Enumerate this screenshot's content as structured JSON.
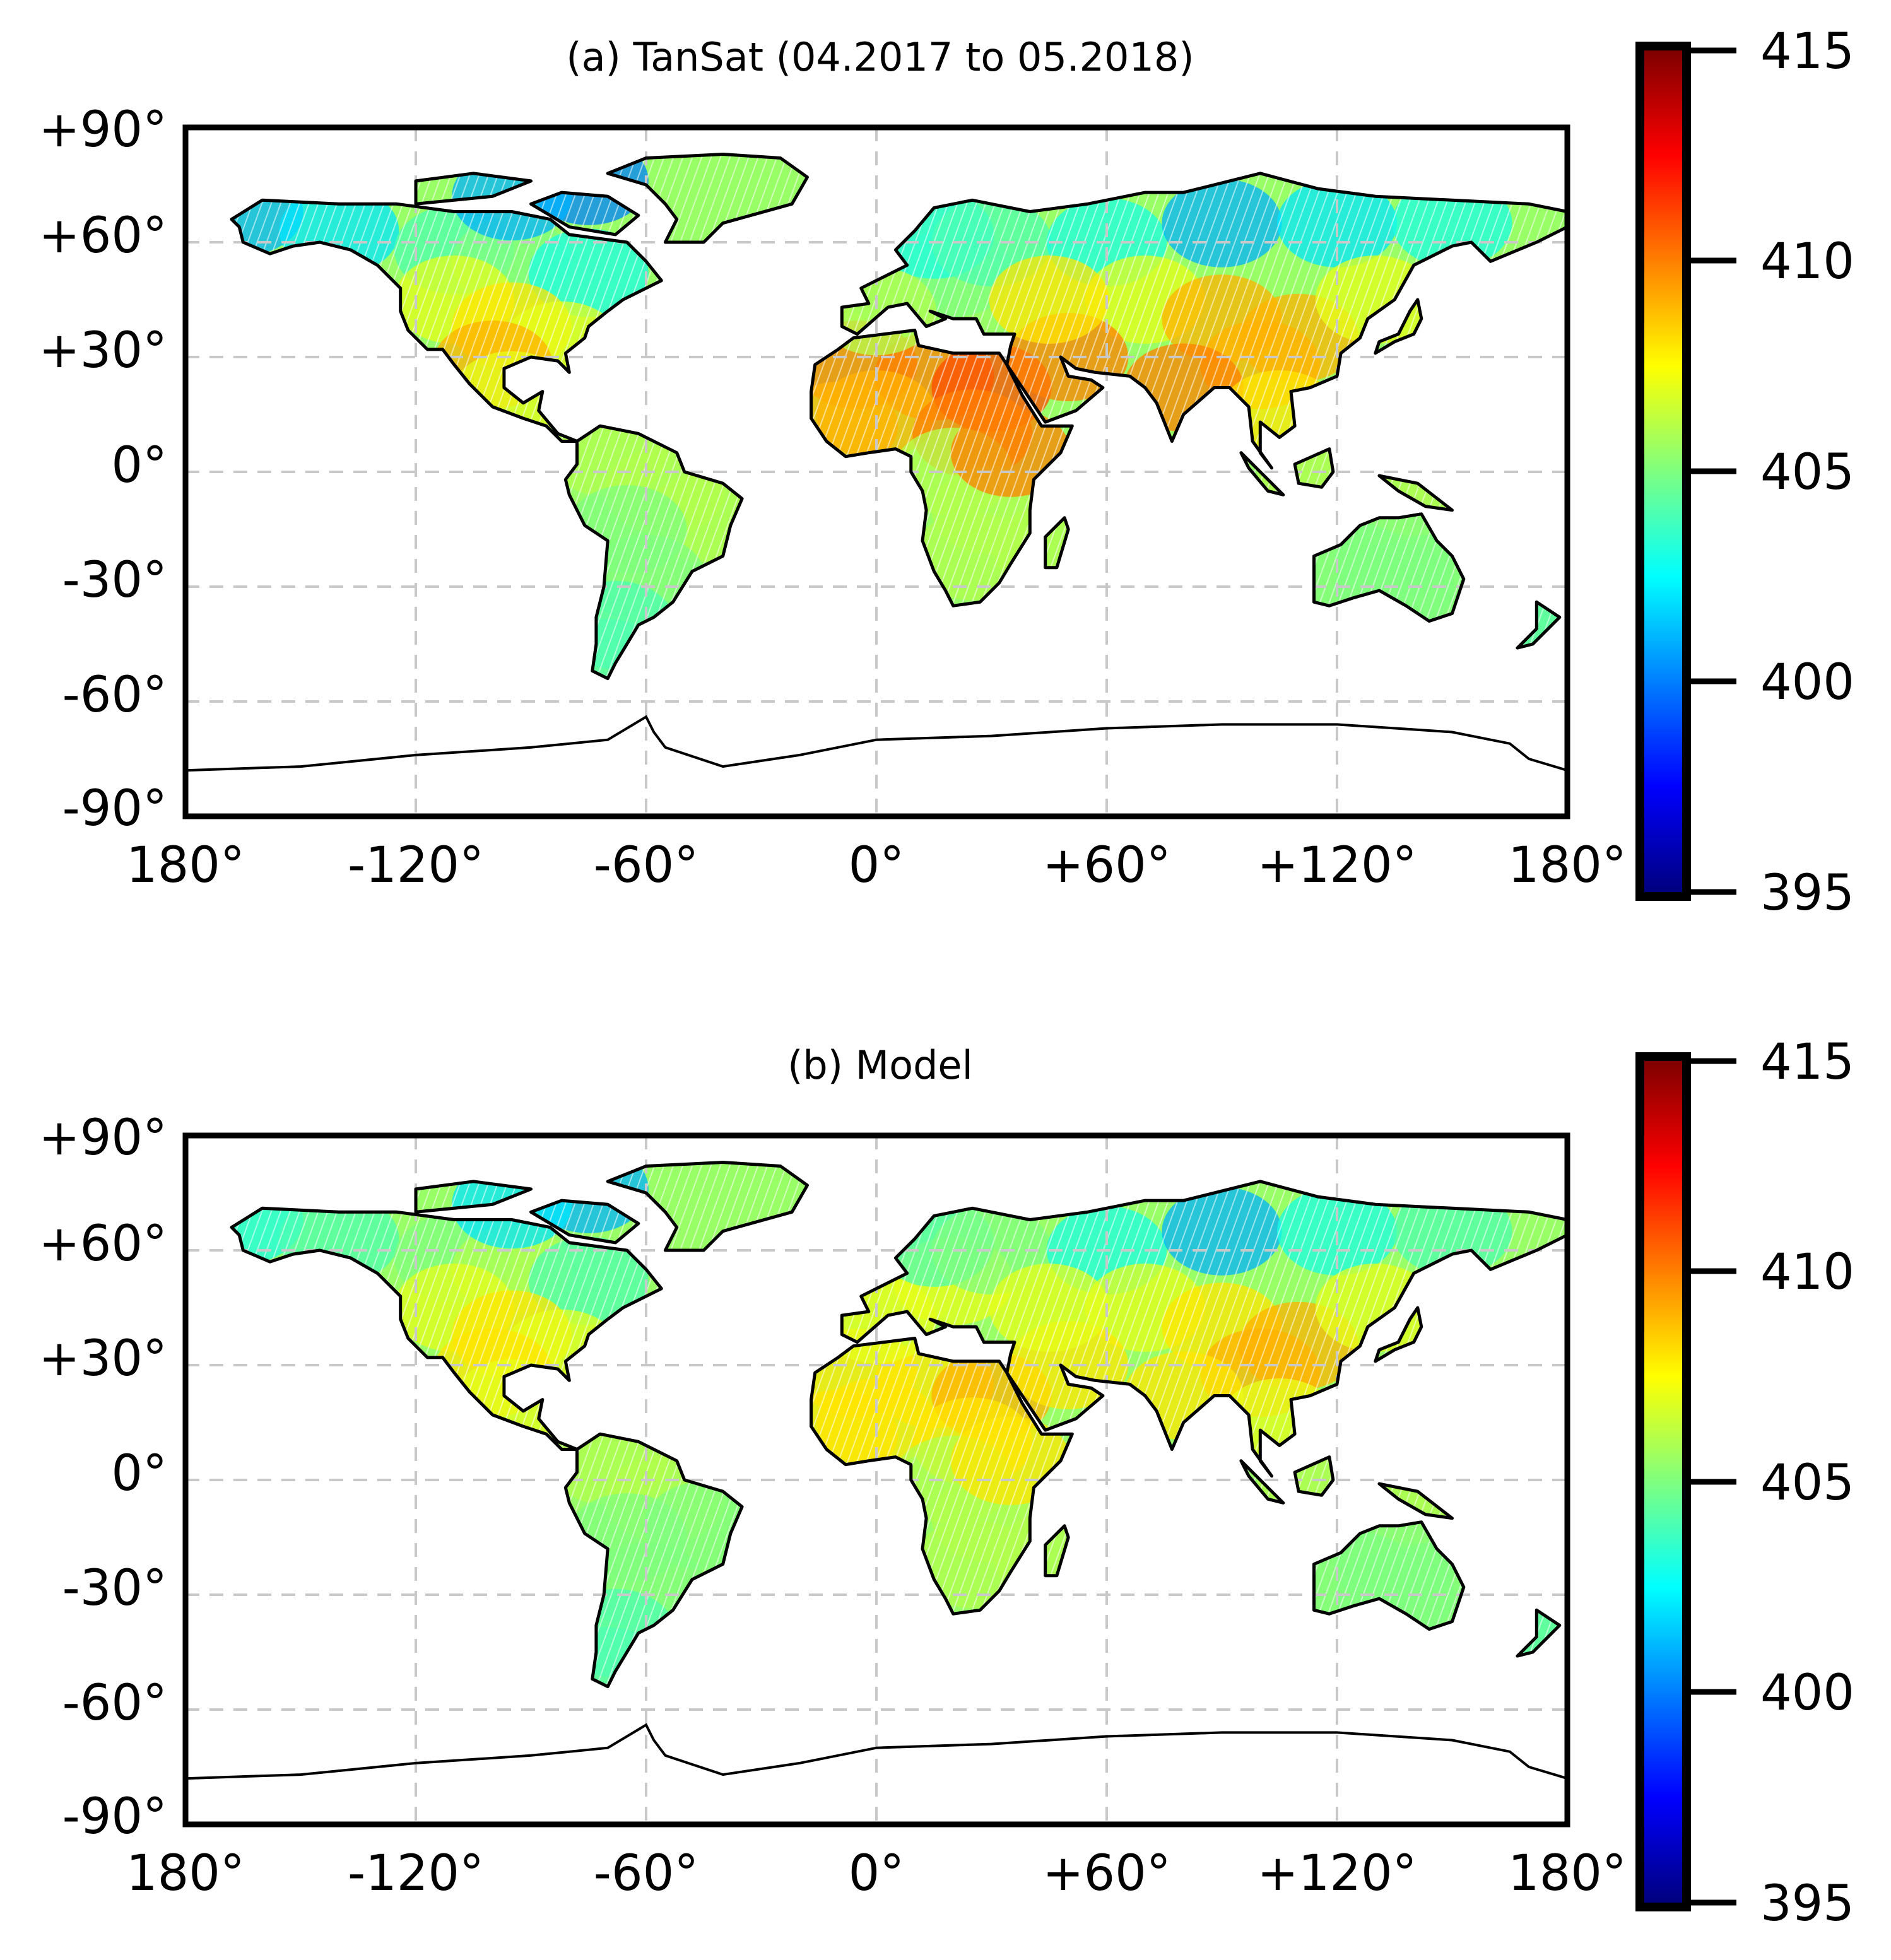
{
  "colors": {
    "frame": "#000000",
    "grid": "#c8c8c8",
    "coast": "#000000",
    "jet": [
      "#00007f",
      "#0000ff",
      "#007fff",
      "#00ffff",
      "#7fff7f",
      "#ffff00",
      "#ff7f00",
      "#ff0000",
      "#7f0000"
    ]
  },
  "panels": [
    {
      "id": "a",
      "title": "(a) TanSat (04.2017 to 05.2018)",
      "x_ticks": [
        "180°",
        "-120°",
        "-60°",
        "0°",
        "+60°",
        "+120°",
        "180°"
      ],
      "y_ticks": [
        "+90°",
        "+60°",
        "+30°",
        "0°",
        "-30°",
        "-60°",
        "-90°"
      ],
      "colorbar": {
        "ticks": [
          "415",
          "410",
          "405",
          "400",
          "395"
        ],
        "vmin": 395,
        "vmax": 415,
        "colormap": "jet"
      }
    },
    {
      "id": "b",
      "title": "(b) Model",
      "x_ticks": [
        "180°",
        "-120°",
        "-60°",
        "0°",
        "+60°",
        "+120°",
        "180°"
      ],
      "y_ticks": [
        "+90°",
        "+60°",
        "+30°",
        "0°",
        "-30°",
        "-60°",
        "-90°"
      ],
      "colorbar": {
        "ticks": [
          "415",
          "410",
          "405",
          "400",
          "395"
        ],
        "vmin": 395,
        "vmax": 415,
        "colormap": "jet"
      }
    }
  ],
  "map": {
    "x_range_deg": [
      -180,
      180
    ],
    "y_range_deg": [
      -90,
      90
    ],
    "grid_lon_deg": [
      -120,
      -60,
      0,
      60,
      120
    ],
    "grid_lat_deg": [
      -60,
      -30,
      0,
      30,
      60
    ],
    "land_regions": [
      {
        "name": "North America",
        "a": [
          [
            -165,
            68,
            401
          ],
          [
            -140,
            63,
            402
          ],
          [
            -110,
            58,
            404
          ],
          [
            -95,
            55,
            405
          ],
          [
            -75,
            52,
            403
          ],
          [
            -110,
            45,
            407
          ],
          [
            -95,
            38,
            408
          ],
          [
            -82,
            33,
            407
          ],
          [
            -100,
            28,
            409
          ],
          [
            -95,
            20,
            407
          ]
        ],
        "b": [
          [
            -165,
            68,
            403
          ],
          [
            -140,
            63,
            404
          ],
          [
            -110,
            58,
            405
          ],
          [
            -95,
            55,
            406
          ],
          [
            -75,
            52,
            404
          ],
          [
            -110,
            45,
            407
          ],
          [
            -95,
            38,
            408
          ],
          [
            -82,
            33,
            407
          ],
          [
            -100,
            28,
            408
          ],
          [
            -95,
            20,
            407
          ]
        ]
      },
      {
        "name": "Greenland and Arctic islands",
        "a": [
          [
            -75,
            76,
            400
          ],
          [
            -95,
            72,
            401
          ]
        ],
        "b": [
          [
            -75,
            76,
            401
          ],
          [
            -95,
            72,
            402
          ]
        ]
      },
      {
        "name": "South America",
        "a": [
          [
            -70,
            5,
            406
          ],
          [
            -55,
            -5,
            406
          ],
          [
            -45,
            -12,
            406
          ],
          [
            -65,
            -15,
            405
          ],
          [
            -60,
            -28,
            405
          ],
          [
            -68,
            -40,
            404
          ],
          [
            -70,
            -50,
            404
          ]
        ],
        "b": [
          [
            -70,
            5,
            406
          ],
          [
            -55,
            -5,
            406
          ],
          [
            -45,
            -12,
            405
          ],
          [
            -65,
            -15,
            405
          ],
          [
            -60,
            -28,
            405
          ],
          [
            -68,
            -40,
            404
          ],
          [
            -70,
            -50,
            404
          ]
        ]
      },
      {
        "name": "Africa",
        "a": [
          [
            -5,
            28,
            410
          ],
          [
            15,
            25,
            410
          ],
          [
            30,
            22,
            411
          ],
          [
            0,
            15,
            409
          ],
          [
            25,
            10,
            410
          ],
          [
            -10,
            12,
            409
          ],
          [
            20,
            0,
            406
          ],
          [
            30,
            -10,
            406
          ],
          [
            25,
            -22,
            406
          ],
          [
            35,
            5,
            410
          ]
        ],
        "b": [
          [
            -5,
            28,
            408
          ],
          [
            15,
            25,
            408
          ],
          [
            30,
            22,
            409
          ],
          [
            0,
            15,
            408
          ],
          [
            25,
            10,
            408
          ],
          [
            -10,
            12,
            408
          ],
          [
            20,
            0,
            406
          ],
          [
            30,
            -10,
            406
          ],
          [
            25,
            -22,
            406
          ],
          [
            35,
            5,
            408
          ]
        ]
      },
      {
        "name": "Europe",
        "a": [
          [
            5,
            50,
            405
          ],
          [
            20,
            52,
            405
          ],
          [
            15,
            62,
            403
          ],
          [
            30,
            60,
            404
          ],
          [
            0,
            42,
            406
          ]
        ],
        "b": [
          [
            5,
            50,
            406
          ],
          [
            20,
            52,
            407
          ],
          [
            15,
            62,
            404
          ],
          [
            30,
            60,
            405
          ],
          [
            0,
            42,
            407
          ]
        ]
      },
      {
        "name": "Asia",
        "a": [
          [
            60,
            60,
            403
          ],
          [
            90,
            65,
            401
          ],
          [
            120,
            65,
            402
          ],
          [
            150,
            65,
            403
          ],
          [
            70,
            45,
            407
          ],
          [
            90,
            40,
            409
          ],
          [
            110,
            35,
            409
          ],
          [
            100,
            28,
            409
          ],
          [
            80,
            22,
            410
          ],
          [
            50,
            30,
            410
          ],
          [
            45,
            45,
            408
          ],
          [
            130,
            45,
            407
          ],
          [
            105,
            15,
            408
          ]
        ],
        "b": [
          [
            60,
            60,
            403
          ],
          [
            90,
            65,
            401
          ],
          [
            120,
            65,
            403
          ],
          [
            150,
            65,
            404
          ],
          [
            70,
            45,
            407
          ],
          [
            90,
            40,
            408
          ],
          [
            110,
            35,
            409
          ],
          [
            100,
            28,
            409
          ],
          [
            80,
            22,
            408
          ],
          [
            50,
            30,
            408
          ],
          [
            45,
            45,
            407
          ],
          [
            130,
            45,
            407
          ],
          [
            105,
            15,
            407
          ]
        ]
      },
      {
        "name": "Maritime continent",
        "a": [
          [
            115,
            0,
            406
          ],
          [
            140,
            -5,
            406
          ]
        ],
        "b": [
          [
            115,
            0,
            406
          ],
          [
            140,
            -5,
            406
          ]
        ]
      },
      {
        "name": "Australia",
        "a": [
          [
            125,
            -25,
            405
          ],
          [
            135,
            -22,
            405
          ],
          [
            145,
            -28,
            405
          ],
          [
            135,
            -30,
            405
          ]
        ],
        "b": [
          [
            125,
            -25,
            405
          ],
          [
            135,
            -22,
            405
          ],
          [
            145,
            -28,
            405
          ],
          [
            135,
            -30,
            405
          ]
        ]
      },
      {
        "name": "Madagascar",
        "a": [
          [
            46,
            -20,
            406
          ]
        ],
        "b": [
          [
            46,
            -20,
            406
          ]
        ]
      },
      {
        "name": "New Zealand",
        "a": [
          [
            172,
            -42,
            404
          ]
        ],
        "b": [
          [
            172,
            -42,
            404
          ]
        ]
      }
    ]
  }
}
